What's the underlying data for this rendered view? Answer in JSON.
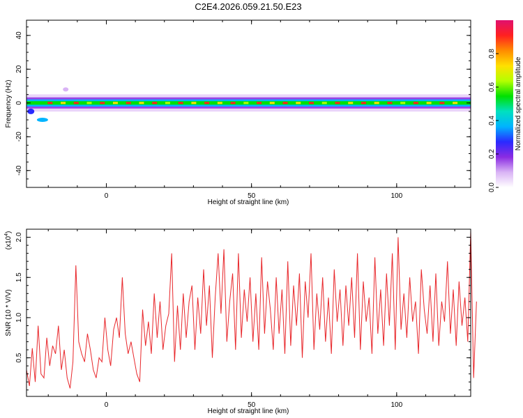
{
  "title": "C2E4.2026.059.21.50.E23",
  "colors": {
    "snr_line": "#e8262a",
    "axis": "#000000",
    "band_center": "#e8262a"
  },
  "chart_data": [
    {
      "type": "heatmap",
      "name": "spectrogram",
      "xlabel": "Height of straight line (km)",
      "ylabel": "Frequency (Hz)",
      "xlim": [
        -27.5,
        125.5
      ],
      "ylim": [
        -50,
        49
      ],
      "xticks": [
        0,
        50,
        100
      ],
      "xtick_labels": [
        "0",
        "50",
        "100"
      ],
      "yticks": [
        -40,
        -20,
        0,
        20,
        40
      ],
      "ytick_labels": [
        "-40",
        "-20",
        "0",
        "20",
        "40"
      ],
      "band_center_hz": 0,
      "band_halfwidth_hz": 3,
      "colorbar": {
        "label": "Normalized spectral amplitude",
        "range": [
          0,
          1
        ],
        "ticks": [
          0.0,
          0.2,
          0.4,
          0.6,
          0.8
        ],
        "tick_labels": [
          "0.0",
          "0.2",
          "0.4",
          "0.6",
          "0.8"
        ],
        "colormap": [
          "#ffffff",
          "#d9b3f5",
          "#8a2be2",
          "#2a2aff",
          "#00b4ff",
          "#00e0c0",
          "#00e000",
          "#b4ff00",
          "#ffe000",
          "#ff8c00",
          "#ff2020",
          "#e0106e"
        ]
      }
    },
    {
      "type": "line",
      "name": "snr",
      "xlabel": "Height of straight line (km)",
      "ylabel": "SNR (10 * V/V)",
      "scale_note": "(x10",
      "scale_exponent": "4",
      "xlim": [
        -27.5,
        125.5
      ],
      "ylim": [
        0.02,
        2.1
      ],
      "xticks": [
        0,
        50,
        100
      ],
      "xtick_labels": [
        "0",
        "50",
        "100"
      ],
      "yticks": [
        0.5,
        1.0,
        1.5,
        2.0
      ],
      "ytick_labels": [
        "0.5",
        "1.0",
        "1.5",
        "2.0"
      ],
      "series": [
        {
          "name": "SNR",
          "x_start": -27.5,
          "x_step": 1.0,
          "values": [
            0.35,
            0.15,
            0.62,
            0.2,
            0.9,
            0.3,
            0.25,
            0.75,
            0.4,
            0.65,
            0.55,
            0.9,
            0.35,
            0.6,
            0.25,
            0.12,
            0.45,
            1.65,
            0.7,
            0.55,
            0.45,
            0.8,
            0.6,
            0.35,
            0.25,
            0.5,
            0.45,
            1.0,
            0.6,
            0.4,
            0.85,
            1.0,
            0.75,
            1.5,
            0.8,
            0.55,
            0.7,
            0.5,
            0.3,
            0.2,
            1.1,
            0.65,
            0.95,
            0.55,
            1.3,
            0.75,
            1.2,
            0.6,
            0.9,
            1.05,
            1.8,
            0.45,
            1.15,
            0.6,
            1.3,
            0.75,
            1.2,
            1.4,
            0.6,
            1.25,
            0.8,
            1.6,
            0.9,
            1.4,
            0.5,
            1.25,
            1.8,
            1.05,
            1.85,
            0.7,
            1.2,
            1.55,
            0.6,
            1.8,
            0.75,
            1.35,
            0.95,
            1.5,
            0.7,
            1.3,
            0.6,
            1.75,
            0.8,
            1.45,
            1.1,
            0.6,
            1.5,
            0.8,
            1.35,
            0.55,
            1.7,
            0.65,
            1.4,
            0.9,
            1.55,
            0.5,
            1.45,
            1.0,
            1.8,
            0.6,
            1.3,
            0.85,
            1.5,
            0.7,
            1.25,
            0.55,
            1.6,
            0.95,
            1.35,
            0.65,
            1.4,
            0.9,
            1.5,
            0.75,
            1.8,
            0.6,
            1.45,
            0.95,
            1.25,
            0.55,
            1.75,
            0.8,
            1.35,
            0.65,
            1.55,
            0.9,
            1.8,
            0.6,
            2.0,
            0.85,
            1.3,
            0.75,
            1.5,
            0.95,
            1.2,
            0.55,
            1.6,
            1.1,
            0.8,
            1.4,
            0.7,
            1.55,
            0.65,
            1.2,
            0.95,
            1.7,
            0.8,
            1.35,
            0.65,
            1.45,
            0.9,
            1.25,
            0.7,
            2.08,
            0.25,
            1.2
          ]
        }
      ]
    }
  ]
}
